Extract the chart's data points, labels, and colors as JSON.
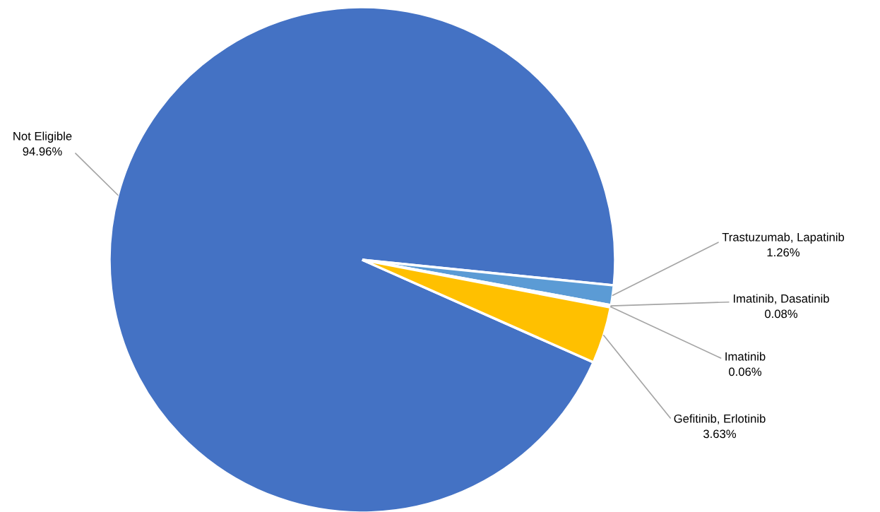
{
  "chart_data": {
    "type": "pie",
    "categories": [
      "Not Eligible",
      "Trastuzumab, Lapatinib",
      "Imatinib, Dasatinib",
      "Imatinib",
      "Gefitinib, Erlotinib"
    ],
    "values": [
      94.96,
      1.26,
      0.08,
      0.06,
      3.63
    ],
    "value_labels": [
      "94.96%",
      "1.26%",
      "0.08%",
      "0.06%",
      "3.63%"
    ],
    "colors": [
      "#4472c4",
      "#5b9bd5",
      "#ed7d31",
      "#a5a5a5",
      "#ffc000"
    ]
  }
}
